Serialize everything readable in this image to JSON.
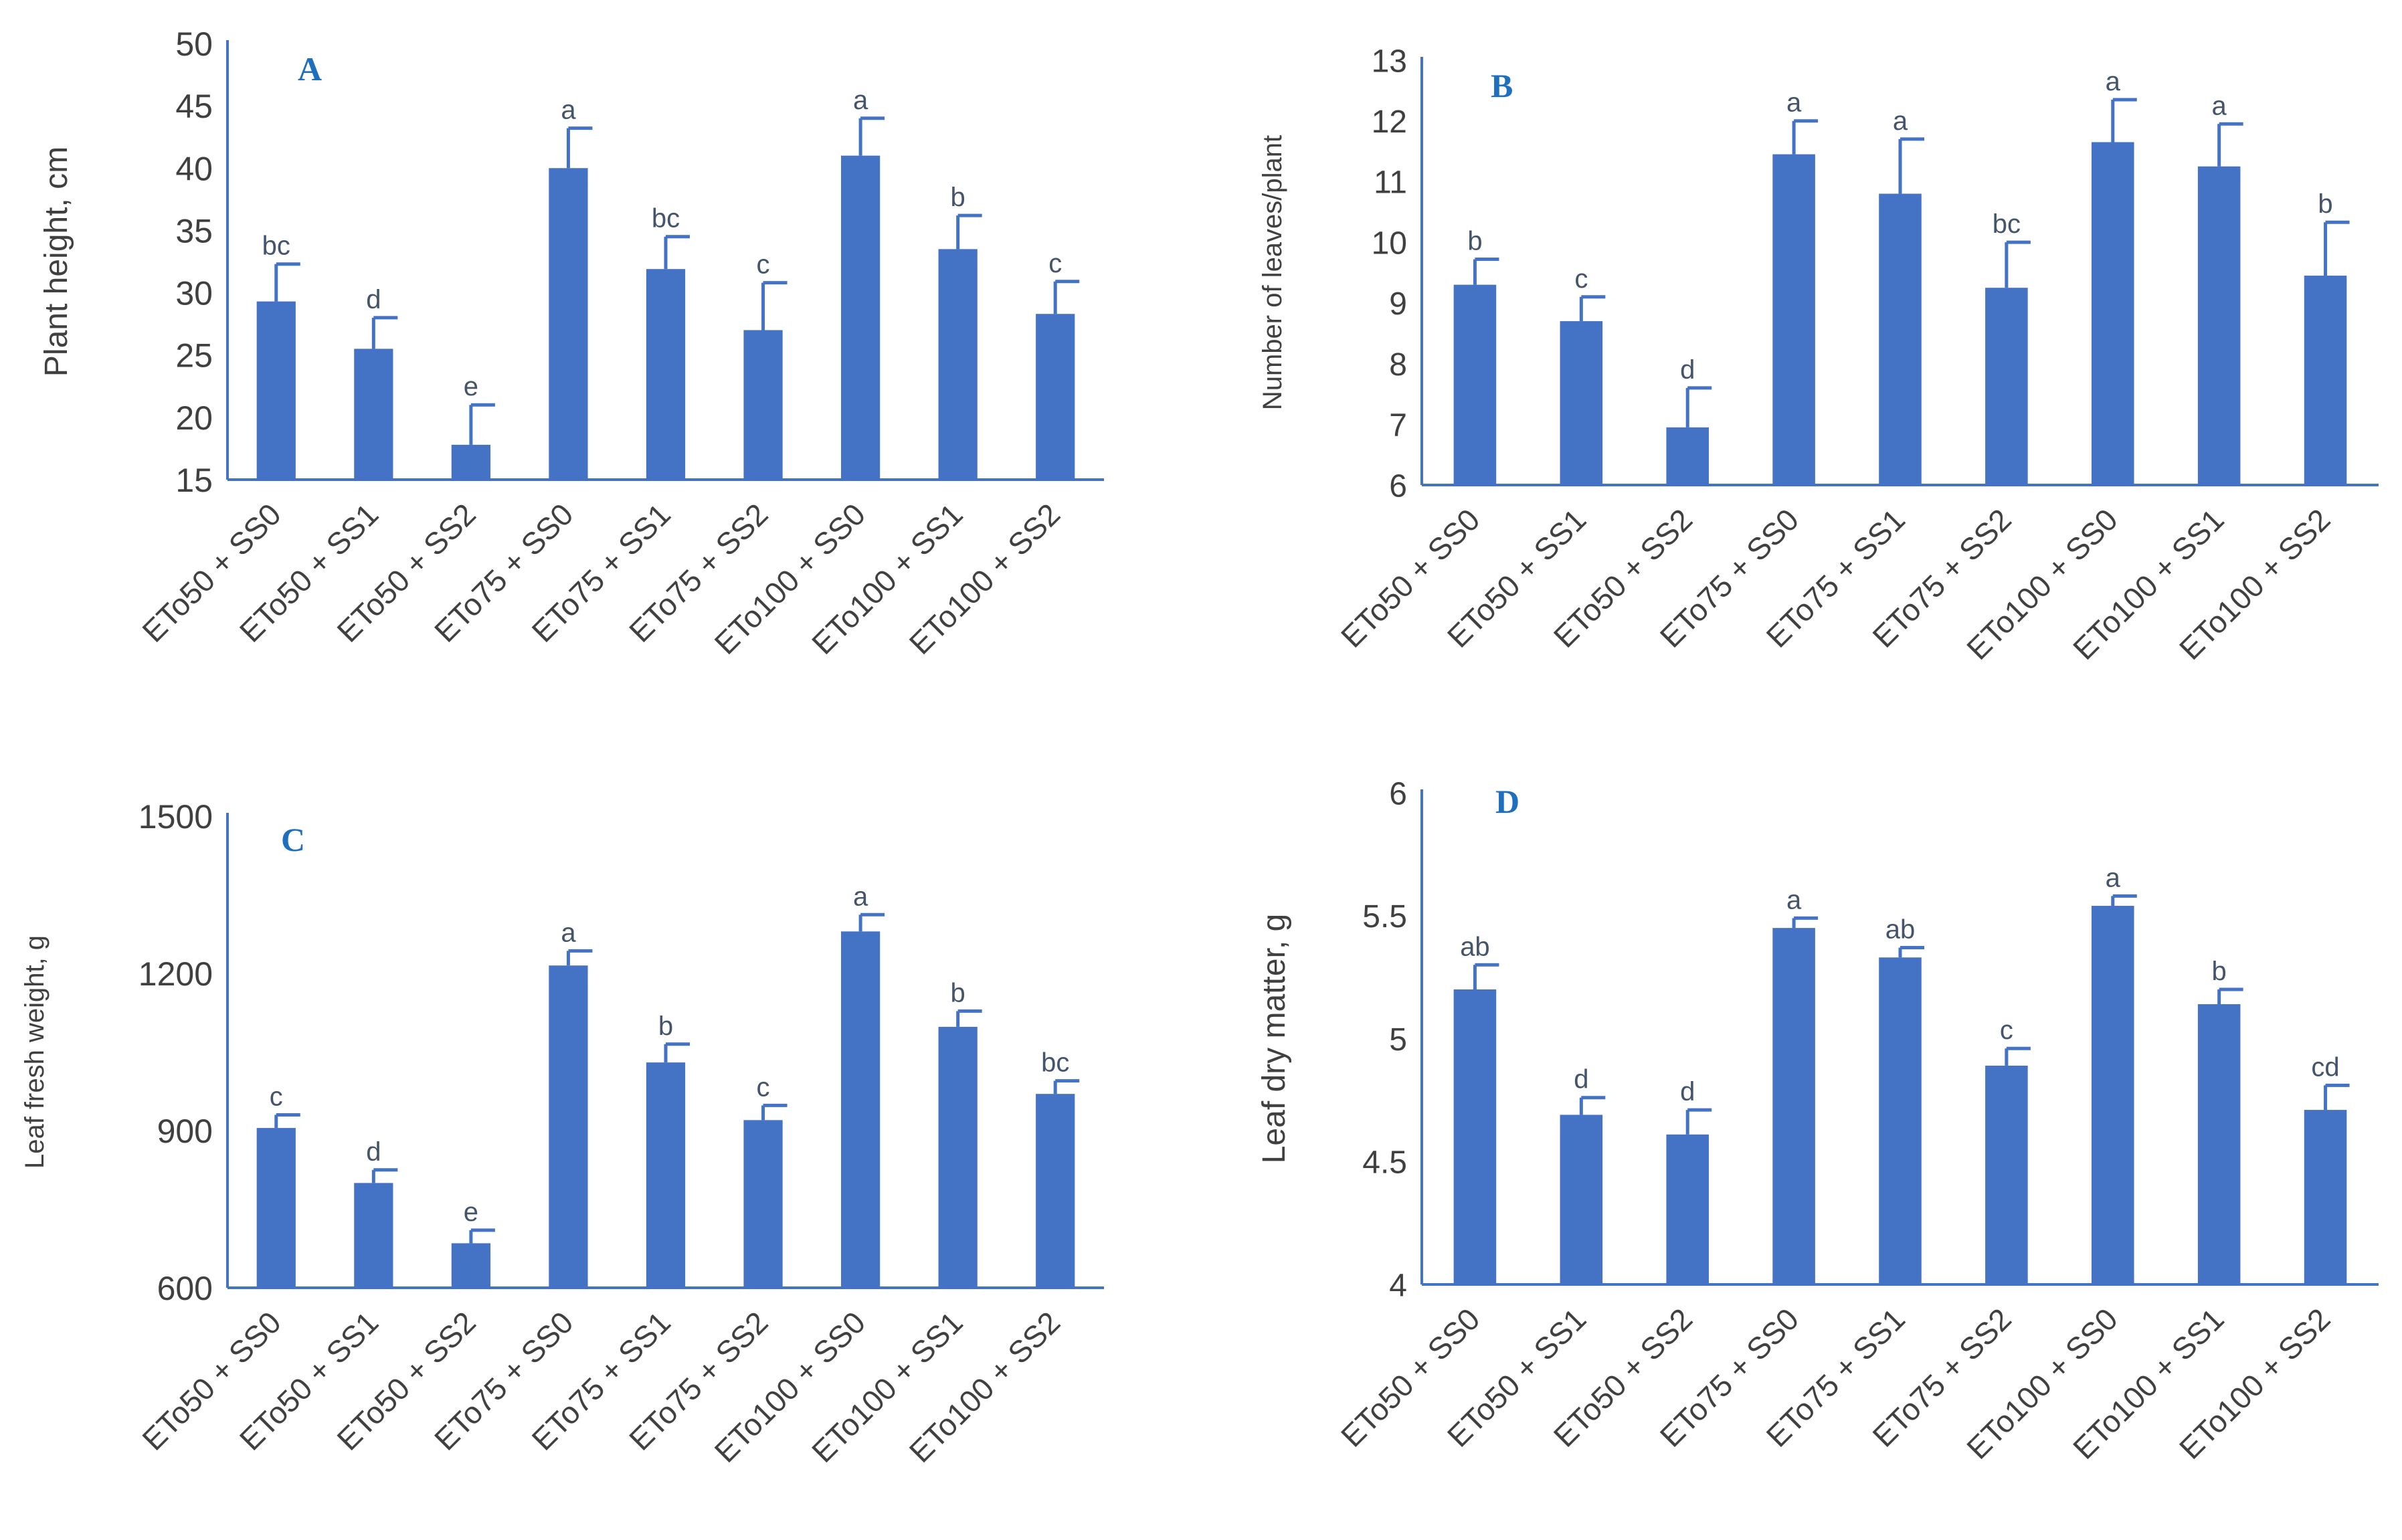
{
  "colors": {
    "bar": "#4472c4",
    "axis": "#4472c4",
    "text": "#404040",
    "panel_label": "#1f6fbf",
    "letters": "#44546a"
  },
  "chart_data": [
    {
      "panel": "A",
      "type": "bar",
      "ylabel": "Plant height, cm",
      "ylim": [
        15,
        50
      ],
      "yticks": [
        "15",
        "20",
        "25",
        "30",
        "35",
        "40",
        "45",
        "50"
      ],
      "categories": [
        "ETo50 + SS0",
        "ETo50 + SS1",
        "ETo50 + SS2",
        "ETo75 + SS0",
        "ETo75 + SS1",
        "ETo75 + SS2",
        "ETo100 + SS0",
        "ETo100 + SS1",
        "ETo100 + SS2"
      ],
      "values": [
        29.3,
        25.5,
        17.8,
        40.0,
        31.9,
        27.0,
        41.0,
        33.5,
        28.3
      ],
      "errors": [
        3.0,
        2.5,
        3.2,
        3.2,
        2.6,
        3.8,
        3.0,
        2.7,
        2.6
      ],
      "letters": [
        "bc",
        "d",
        "e",
        "a",
        "bc",
        "c",
        "a",
        "b",
        "c"
      ]
    },
    {
      "panel": "B",
      "type": "bar",
      "ylabel": "Number of leaves/plant",
      "ylim": [
        6,
        13
      ],
      "yticks": [
        "6",
        "7",
        "8",
        "9",
        "10",
        "11",
        "12",
        "13"
      ],
      "categories": [
        "ETo50 + SS0",
        "ETo50 + SS1",
        "ETo50 + SS2",
        "ETo75 + SS0",
        "ETo75 + SS1",
        "ETo75 + SS2",
        "ETo100 + SS0",
        "ETo100 + SS1",
        "ETo100 + SS2"
      ],
      "values": [
        9.3,
        8.7,
        6.95,
        11.45,
        10.8,
        9.25,
        11.65,
        11.25,
        9.45
      ],
      "errors": [
        0.42,
        0.4,
        0.65,
        0.55,
        0.9,
        0.75,
        0.7,
        0.7,
        0.88
      ],
      "letters": [
        "b",
        "c",
        "d",
        "a",
        "a",
        "bc",
        "a",
        "a",
        "b"
      ]
    },
    {
      "panel": "C",
      "type": "bar",
      "ylabel": "Leaf fresh weight, g",
      "ylim": [
        600,
        1500
      ],
      "yticks": [
        "600",
        "900",
        "1200",
        "1500"
      ],
      "categories": [
        "ETo50 + SS0",
        "ETo50 + SS1",
        "ETo50 + SS2",
        "ETo75 + SS0",
        "ETo75 + SS1",
        "ETo75 + SS2",
        "ETo100 + SS0",
        "ETo100 + SS1",
        "ETo100 + SS2"
      ],
      "values": [
        905,
        800,
        685,
        1215,
        1030,
        920,
        1280,
        1098,
        970
      ],
      "errors": [
        25,
        25,
        25,
        28,
        35,
        28,
        32,
        30,
        25
      ],
      "letters": [
        "c",
        "d",
        "e",
        "a",
        "b",
        "c",
        "a",
        "b",
        "bc"
      ]
    },
    {
      "panel": "D",
      "type": "bar",
      "ylabel": "Leaf dry matter, g",
      "ylim": [
        4,
        6
      ],
      "yticks": [
        "4",
        "4.5",
        "5",
        "5.5",
        "6"
      ],
      "categories": [
        "ETo50 + SS0",
        "ETo50 + SS1",
        "ETo50 + SS2",
        "ETo75 + SS0",
        "ETo75 + SS1",
        "ETo75 + SS2",
        "ETo100 + SS0",
        "ETo100 + SS1",
        "ETo100 + SS2"
      ],
      "values": [
        5.2,
        4.69,
        4.61,
        5.45,
        5.33,
        4.89,
        5.54,
        5.14,
        4.71
      ],
      "errors": [
        0.1,
        0.07,
        0.1,
        0.04,
        0.04,
        0.07,
        0.04,
        0.06,
        0.1
      ],
      "letters": [
        "ab",
        "d",
        "d",
        "a",
        "ab",
        "c",
        "a",
        "b",
        "cd"
      ]
    }
  ]
}
